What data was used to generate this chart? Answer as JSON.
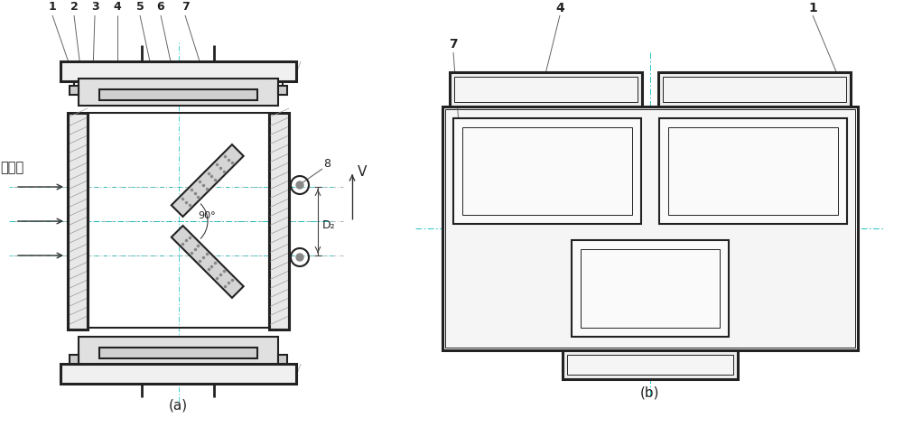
{
  "bg_color": "#ffffff",
  "lc": "#444444",
  "lc_thick": "#222222",
  "lc_thin": "#777777",
  "hatch_fc": "#cccccc",
  "fig_width": 10.0,
  "fig_height": 4.73,
  "title_a": "(a)",
  "title_b": "(b)",
  "label_V": "V",
  "label_light": "入射光",
  "label_90": "90°",
  "label_D2": "D₂",
  "label_8": "8",
  "labels_top": [
    "1",
    "2",
    "3",
    "4",
    "5",
    "6",
    "7"
  ],
  "label_4_b": "4",
  "label_1_b": "1",
  "label_7_b": "7",
  "cyan1": "#00bbbb",
  "cyan2": "#22cccc",
  "pink1": "#ffaaaa",
  "green1": "#44bb44"
}
